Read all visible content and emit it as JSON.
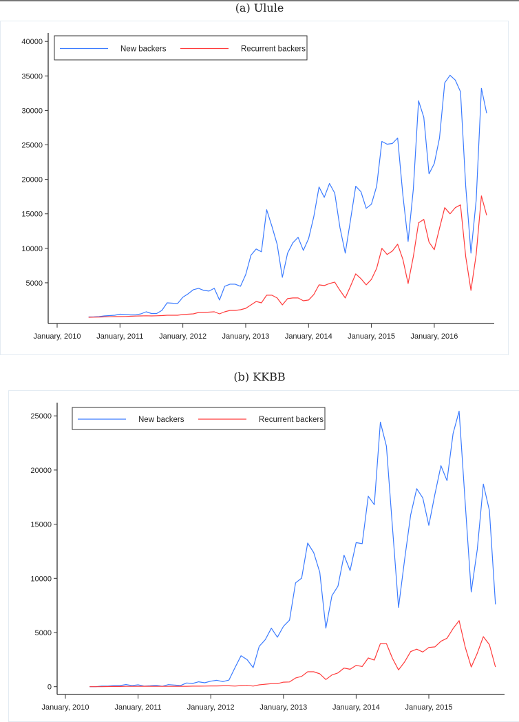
{
  "chart_data": [
    {
      "type": "line",
      "title": "(a) Ulule",
      "xlabel": "",
      "ylabel": "",
      "x_start": "2010-07",
      "x_frequency": "monthly",
      "x_ticks": [
        "January, 2010",
        "January, 2011",
        "January, 2012",
        "January, 2013",
        "January, 2014",
        "January, 2015",
        "January, 2016"
      ],
      "y_ticks": [
        5000,
        10000,
        15000,
        20000,
        25000,
        30000,
        35000,
        40000
      ],
      "ylim": [
        0,
        40000
      ],
      "grid": false,
      "legend": "top",
      "series": [
        {
          "name": "New backers",
          "color": "#3b7bff",
          "values": [
            50,
            60,
            100,
            200,
            250,
            300,
            450,
            400,
            350,
            350,
            500,
            800,
            550,
            550,
            1000,
            2100,
            2050,
            2000,
            2900,
            3400,
            4000,
            4200,
            3900,
            3800,
            4200,
            2500,
            4500,
            4800,
            4800,
            4500,
            6200,
            9000,
            9900,
            9500,
            15600,
            13200,
            10600,
            5800,
            9300,
            10800,
            11600,
            9700,
            11400,
            14600,
            18900,
            17400,
            19400,
            18000,
            13000,
            9300,
            14100,
            19000,
            18200,
            15800,
            16400,
            19000,
            25500,
            25100,
            25200,
            26000,
            17700,
            11000,
            18600,
            31400,
            29000,
            20800,
            22300,
            26000,
            34000,
            35100,
            34400,
            32700,
            19000,
            9300,
            17000,
            33200,
            29600
          ]
        },
        {
          "name": "Recurrent backers",
          "color": "#ff3b3b",
          "values": [
            0,
            20,
            40,
            60,
            80,
            100,
            100,
            120,
            150,
            180,
            200,
            220,
            200,
            220,
            250,
            300,
            300,
            300,
            400,
            450,
            500,
            700,
            700,
            750,
            800,
            500,
            800,
            1000,
            1000,
            1100,
            1300,
            1800,
            2300,
            2100,
            3200,
            3200,
            2800,
            1800,
            2700,
            2800,
            2800,
            2400,
            2500,
            3300,
            4700,
            4600,
            4900,
            5100,
            3900,
            2800,
            4500,
            6300,
            5600,
            4700,
            5500,
            7100,
            10000,
            9100,
            9600,
            10600,
            8400,
            4900,
            8800,
            13700,
            14200,
            10900,
            9800,
            12900,
            15900,
            15000,
            15900,
            16300,
            8800,
            3900,
            9100,
            17600,
            14800
          ]
        }
      ]
    },
    {
      "type": "line",
      "title": "(b) KKBB",
      "xlabel": "",
      "ylabel": "",
      "x_start": "2010-05",
      "x_frequency": "monthly",
      "x_ticks": [
        "January, 2010",
        "January, 2011",
        "January, 2012",
        "January, 2013",
        "January, 2014",
        "January, 2015"
      ],
      "y_ticks": [
        0,
        5000,
        10000,
        15000,
        20000,
        25000
      ],
      "ylim": [
        0,
        25000
      ],
      "grid": false,
      "legend": "top",
      "series": [
        {
          "name": "New backers",
          "color": "#3b7bff",
          "values": [
            0,
            0,
            50,
            50,
            100,
            100,
            200,
            100,
            170,
            60,
            80,
            130,
            40,
            190,
            150,
            100,
            340,
            300,
            450,
            360,
            510,
            590,
            470,
            610,
            1760,
            2860,
            2500,
            1760,
            3730,
            4340,
            5400,
            4570,
            5570,
            6140,
            9590,
            10020,
            13260,
            12370,
            10550,
            5400,
            8390,
            9280,
            12140,
            10720,
            13300,
            13200,
            17580,
            16800,
            24420,
            22200,
            14680,
            7310,
            11720,
            15850,
            18280,
            17430,
            14890,
            17750,
            20400,
            19020,
            23360,
            25440,
            17010,
            8750,
            12670,
            18700,
            16270,
            7590
          ]
        },
        {
          "name": "Recurrent backers",
          "color": "#ff3b3b",
          "values": [
            0,
            0,
            0,
            10,
            20,
            20,
            30,
            30,
            30,
            40,
            40,
            30,
            30,
            30,
            40,
            40,
            40,
            50,
            50,
            60,
            70,
            70,
            80,
            80,
            60,
            100,
            130,
            60,
            170,
            230,
            280,
            280,
            420,
            440,
            800,
            950,
            1380,
            1380,
            1190,
            660,
            1080,
            1270,
            1720,
            1610,
            1970,
            1860,
            2650,
            2460,
            3980,
            3980,
            2610,
            1550,
            2290,
            3240,
            3460,
            3200,
            3620,
            3670,
            4190,
            4470,
            5360,
            6100,
            3670,
            1820,
            3090,
            4620,
            3880,
            1820
          ]
        }
      ]
    }
  ]
}
